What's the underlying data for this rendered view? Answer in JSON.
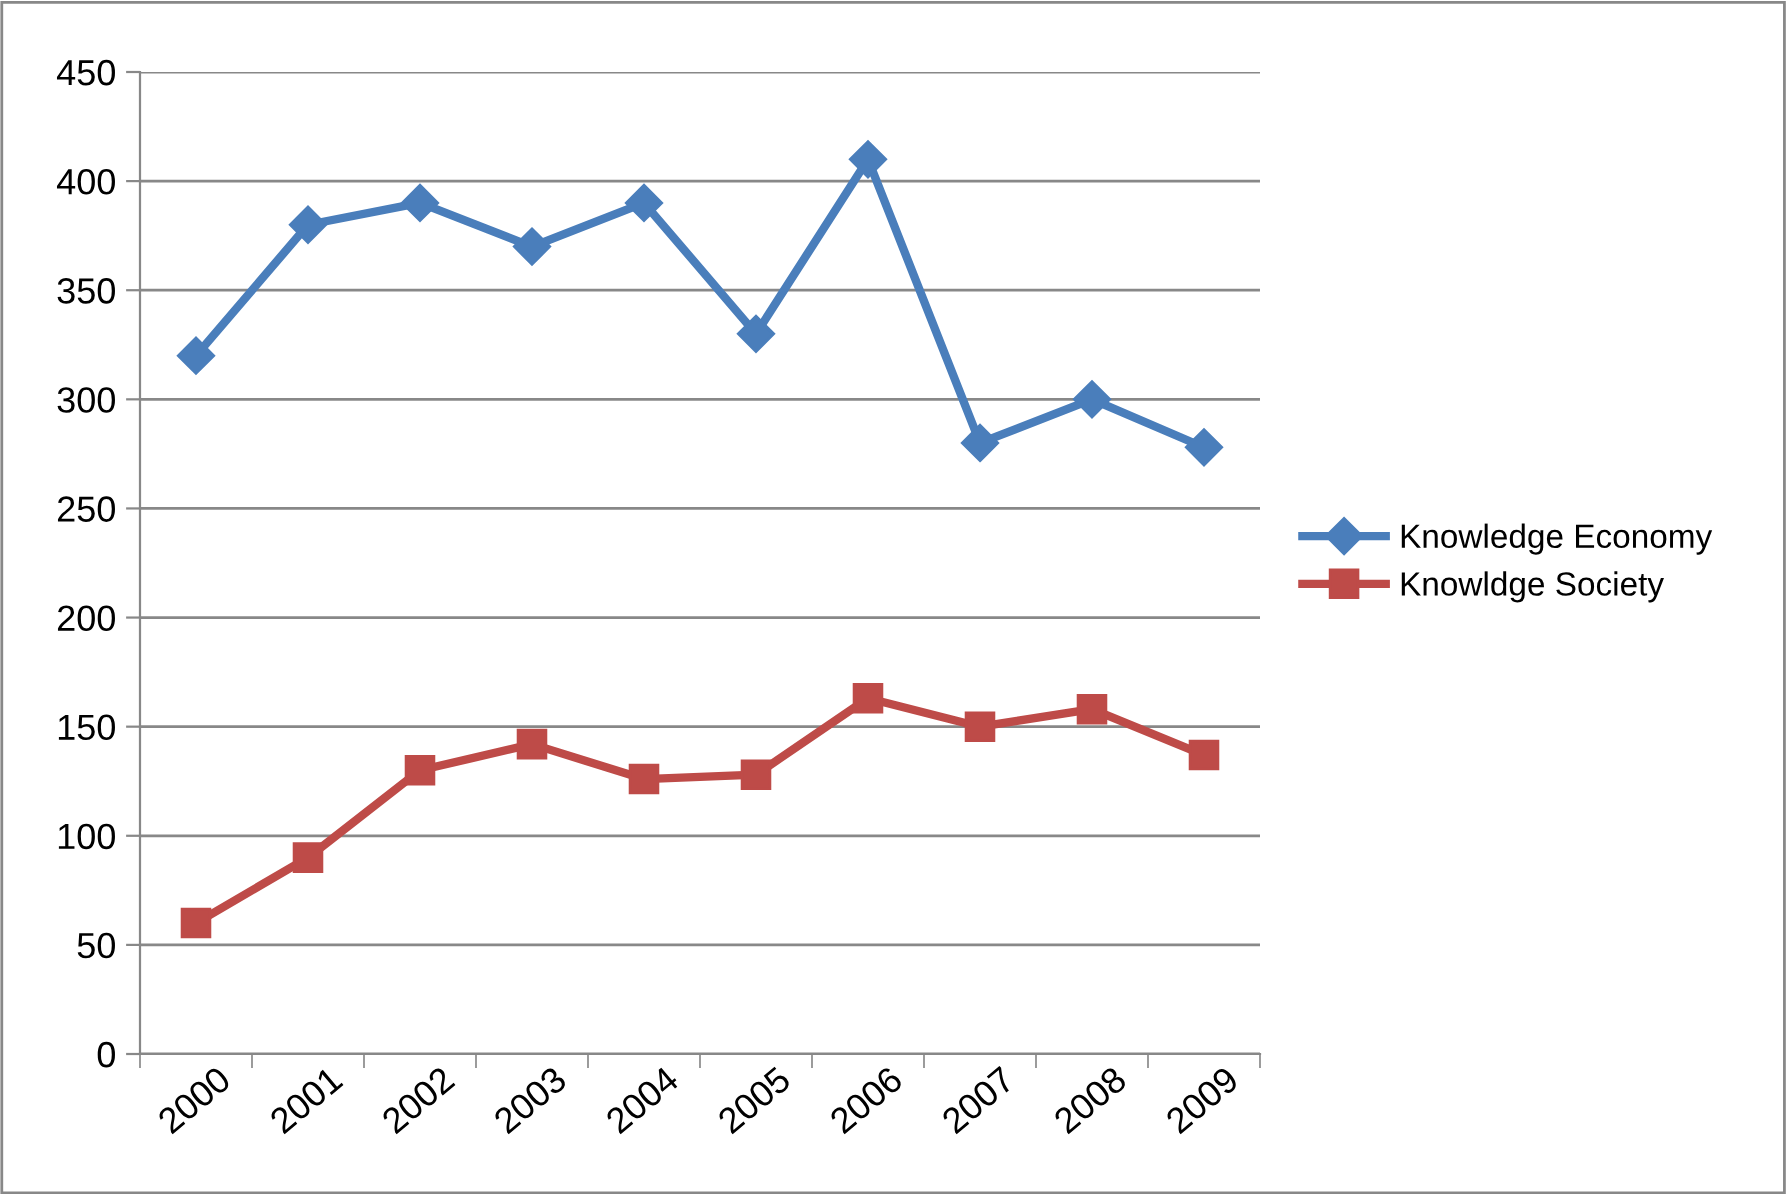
{
  "chart_data": {
    "type": "line",
    "categories": [
      "2000",
      "2001",
      "2002",
      "2003",
      "2004",
      "2005",
      "2006",
      "2007",
      "2008",
      "2009"
    ],
    "series": [
      {
        "name": "Knowledge Economy",
        "color": "#4a7ebb",
        "marker": "diamond",
        "values": [
          320,
          380,
          390,
          370,
          390,
          330,
          410,
          280,
          300,
          278
        ]
      },
      {
        "name": "Knowldge Society",
        "color": "#be4b48",
        "marker": "square",
        "values": [
          60,
          90,
          130,
          142,
          126,
          128,
          163,
          150,
          158,
          137
        ]
      }
    ],
    "ylim": [
      0,
      450
    ],
    "yticks": [
      0,
      50,
      100,
      150,
      200,
      250,
      300,
      350,
      400,
      450
    ],
    "grid": "y",
    "legend": "right",
    "line_style": "solid"
  }
}
